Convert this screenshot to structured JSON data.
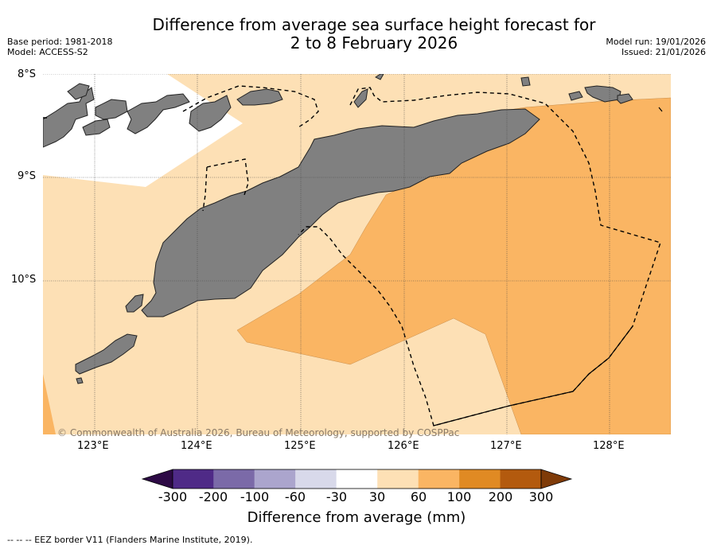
{
  "title_line1": "Difference from average sea surface height forecast for",
  "title_line2": "2 to 8 February 2026",
  "base_period": "Base period: 1981-2018",
  "model": "Model: ACCESS-S2",
  "model_run": "Model run: 19/01/2026",
  "issued": "Issued: 21/01/2026",
  "lat_labels": [
    "8°S",
    "9°S",
    "10°S"
  ],
  "lon_labels": [
    "123°E",
    "124°E",
    "125°E",
    "126°E",
    "127°E",
    "128°E"
  ],
  "copyright": "© Commonwealth of Australia 2026, Bureau of Meteorology, supported by COSPPac",
  "colorbar": {
    "ticks": [
      "-300",
      "-200",
      "-100",
      "-60",
      "-30",
      "30",
      "60",
      "100",
      "200",
      "300"
    ],
    "colors": [
      "#2d0a45",
      "#4f2a87",
      "#7b6aa8",
      "#aba5cd",
      "#d8d9ea",
      "#ffffff",
      "#fde0b5",
      "#fab563",
      "#e08a23",
      "#b35a0e",
      "#7f3b08"
    ],
    "label": "Difference from average (mm)"
  },
  "footer": "-- -- -- EEZ border V11 (Flanders Marine Institute, 2019).",
  "colors": {
    "land": "#808080",
    "band_30_60": "#fde0b5",
    "band_60_100": "#fab563",
    "no_data": "#ffffff"
  }
}
